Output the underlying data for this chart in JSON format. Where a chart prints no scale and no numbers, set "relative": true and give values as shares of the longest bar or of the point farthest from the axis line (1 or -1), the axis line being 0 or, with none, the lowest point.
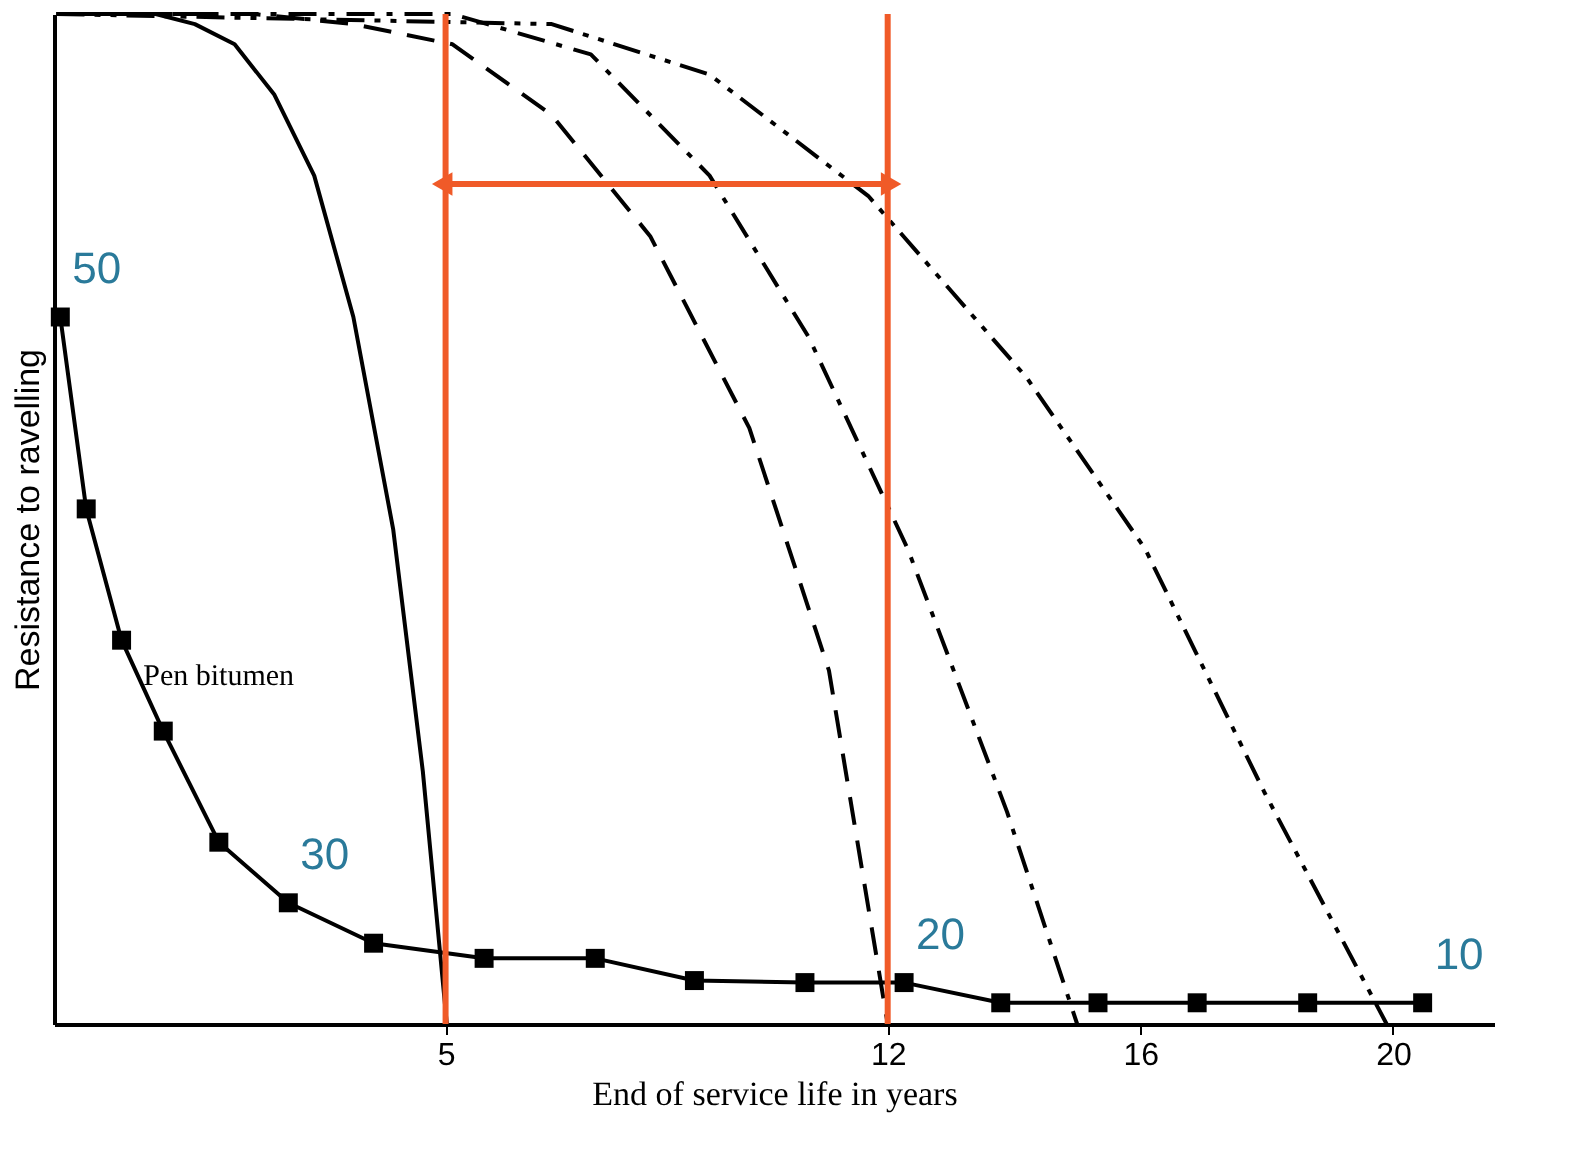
{
  "chart_data": {
    "type": "line",
    "relative": true,
    "xlabel": "End of service life in years",
    "ylabel": "Resistance to ravelling",
    "xlim": [
      -1.2,
      21.6
    ],
    "xticks": [
      5,
      12,
      16,
      20
    ],
    "grid": false,
    "tick_labels": "x",
    "series": [
      {
        "color": "#000000",
        "line_style": "solid",
        "marker": "none",
        "x": [
          -1.16,
          0.41,
          1.03,
          1.66,
          2.29,
          2.92,
          3.54,
          4.17,
          4.64,
          5.02
        ],
        "values": [
          1,
          1,
          0.99,
          0.97,
          0.92,
          0.84,
          0.7,
          0.49,
          0.25,
          0
        ]
      },
      {
        "color": "#000000",
        "line_style": "dashed",
        "marker": "none",
        "x": [
          -1.16,
          1.97,
          3.54,
          5.11,
          6.68,
          8.24,
          9.81,
          11.07,
          12.0
        ],
        "values": [
          1,
          1,
          0.99,
          0.97,
          0.9,
          0.78,
          0.59,
          0.35,
          0
        ]
      },
      {
        "color": "#000000",
        "line_style": "dashdot",
        "marker": "none",
        "x": [
          -1.16,
          5.11,
          7.3,
          9.18,
          10.75,
          12.32,
          13.89,
          15.0
        ],
        "values": [
          1,
          1,
          0.96,
          0.84,
          0.68,
          0.47,
          0.21,
          0
        ]
      },
      {
        "color": "#000000",
        "line_style": "dashdotdot",
        "marker": "none",
        "x": [
          -1.16,
          6.68,
          9.18,
          11.69,
          14.2,
          16.08,
          17.96,
          19.9
        ],
        "values": [
          1,
          0.99,
          0.94,
          0.82,
          0.64,
          0.47,
          0.23,
          0
        ]
      },
      {
        "name": "Pen bitumen",
        "color": "#000000",
        "line_style": "solid",
        "marker": "square",
        "x": [
          -1.1,
          -0.69,
          -0.13,
          0.53,
          1.41,
          2.51,
          3.86,
          5.61,
          7.37,
          8.94,
          10.69,
          12.26,
          13.79,
          15.33,
          16.9,
          18.65,
          20.47
        ],
        "values": [
          0.7,
          0.51,
          0.38,
          0.29,
          0.18,
          0.12,
          0.08,
          0.065,
          0.065,
          0.043,
          0.041,
          0.041,
          0.021,
          0.021,
          0.021,
          0.021,
          0.021
        ]
      }
    ],
    "ref_lines": [
      {
        "axis": "x",
        "value": 5,
        "color": "#f05a28"
      },
      {
        "axis": "x",
        "value": 12,
        "color": "#f05a28"
      }
    ],
    "annotations": [
      "50",
      "30",
      "20",
      "10"
    ]
  }
}
